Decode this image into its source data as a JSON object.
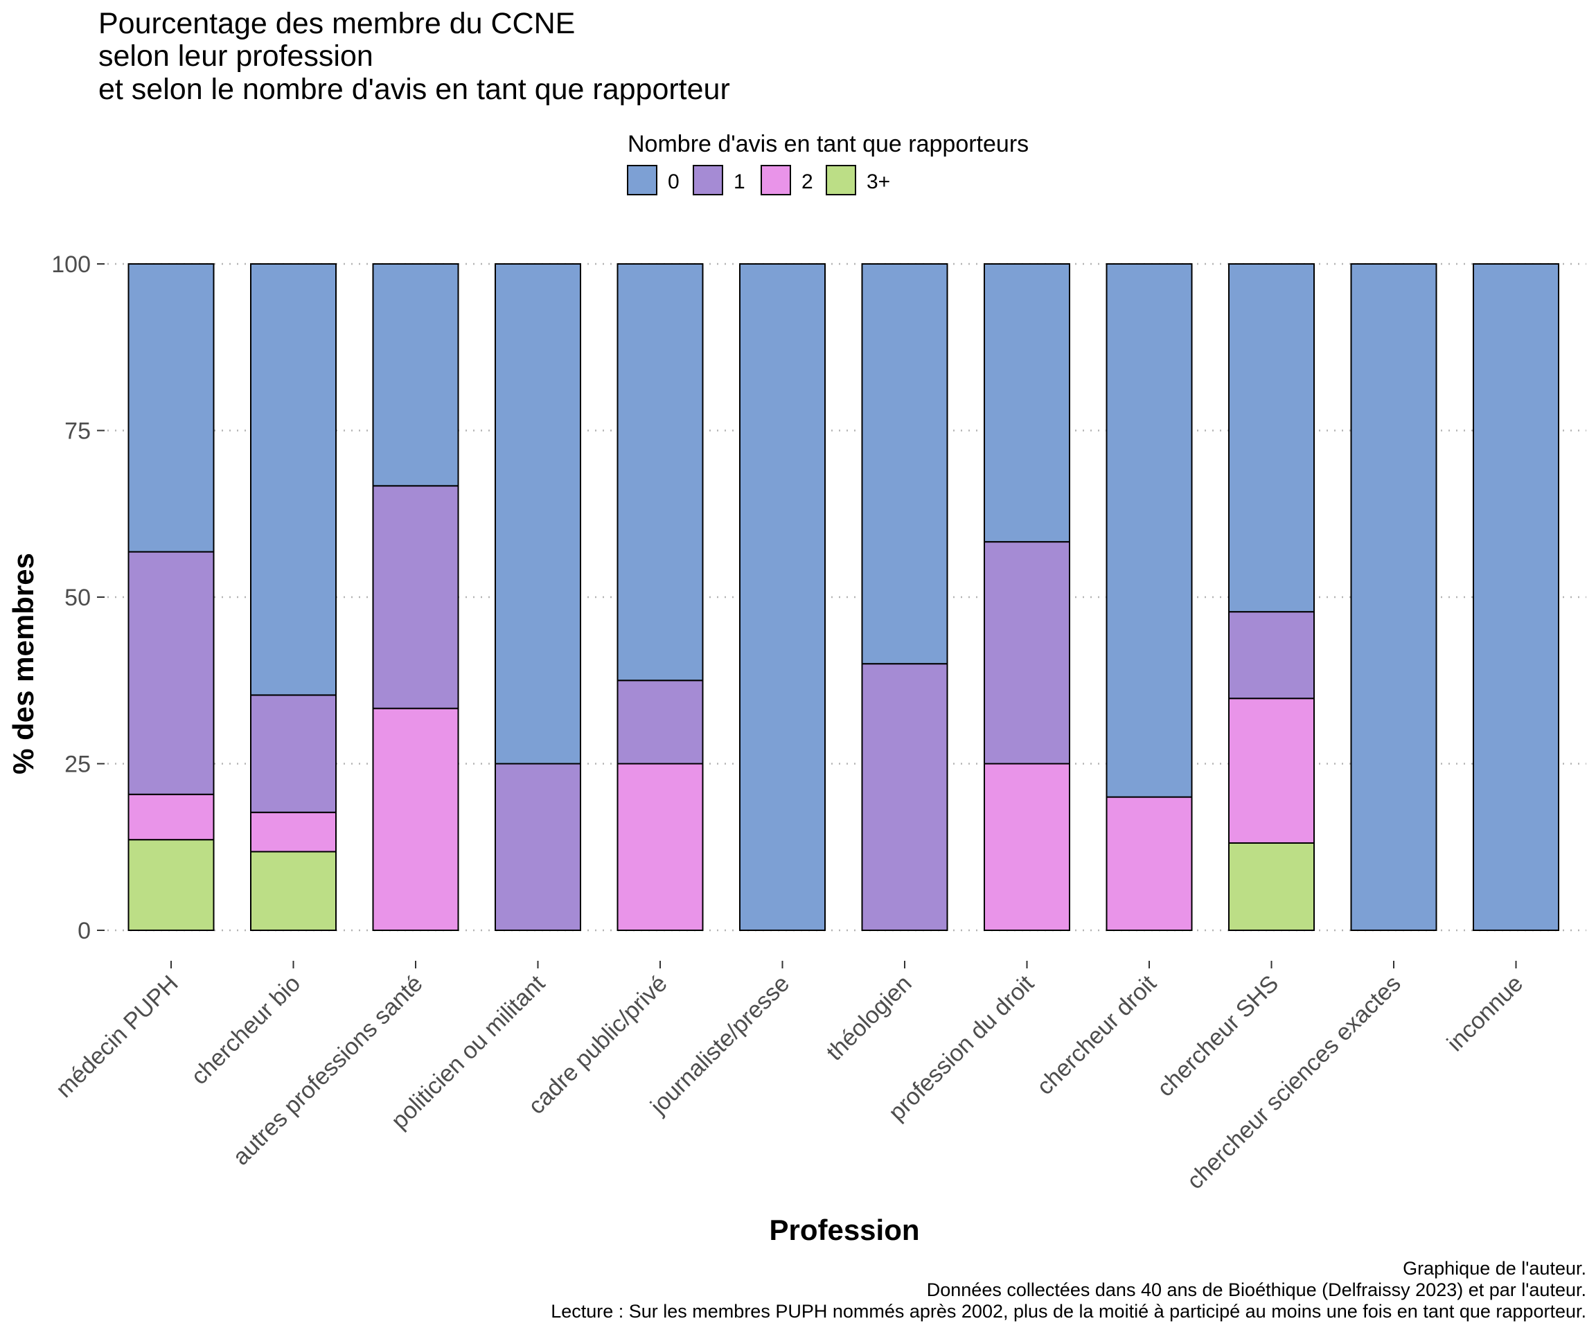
{
  "chart_data": {
    "type": "bar",
    "stacked": true,
    "title": [
      "Pourcentage des membre du CCNE",
      "selon leur profession",
      "et selon le nombre d'avis en tant que rapporteur"
    ],
    "xlabel": "Profession",
    "ylabel": "% des membres",
    "ylim": [
      0,
      100
    ],
    "yticks": [
      "0",
      "25",
      "50",
      "75",
      "100"
    ],
    "grid": "horizontal dotted",
    "legend": {
      "title": "Nombre d'avis en tant que rapporteurs",
      "position": "top",
      "items": [
        "0",
        "1",
        "2",
        "3+"
      ]
    },
    "categories": [
      "médecin PUPH",
      "chercheur bio",
      "autres professions santé",
      "politicien ou militant",
      "cadre public/privé",
      "journaliste/presse",
      "théologien",
      "profession du droit",
      "chercheur droit",
      "chercheur SHS",
      "chercheur sciences exactes",
      "inconnue"
    ],
    "series": [
      {
        "name": "0",
        "color": "#7da0d4",
        "values": [
          43.2,
          64.7,
          33.3,
          75.0,
          62.5,
          100,
          60.0,
          41.7,
          80.0,
          52.2,
          100,
          100
        ]
      },
      {
        "name": "1",
        "color": "#a58bd4",
        "values": [
          36.4,
          17.6,
          33.4,
          25.0,
          12.5,
          0,
          40.0,
          33.3,
          0,
          13.0,
          0,
          0
        ]
      },
      {
        "name": "2",
        "color": "#e994e9",
        "values": [
          6.8,
          5.9,
          33.3,
          0,
          25.0,
          0,
          0,
          25.0,
          20.0,
          21.7,
          0,
          0
        ]
      },
      {
        "name": "3+",
        "color": "#bcde86",
        "values": [
          13.6,
          11.8,
          0,
          0,
          0,
          0,
          0,
          0,
          0,
          13.1,
          0,
          0
        ]
      }
    ],
    "caption": [
      "Graphique de l'auteur.",
      "Données collectées dans 40 ans de Bioéthique (Delfraissy 2023) et par l'auteur.",
      "Lecture : Sur les membres PUPH nommés après 2002, plus de la moitié à participé au moins une fois en tant que rapporteur."
    ]
  }
}
